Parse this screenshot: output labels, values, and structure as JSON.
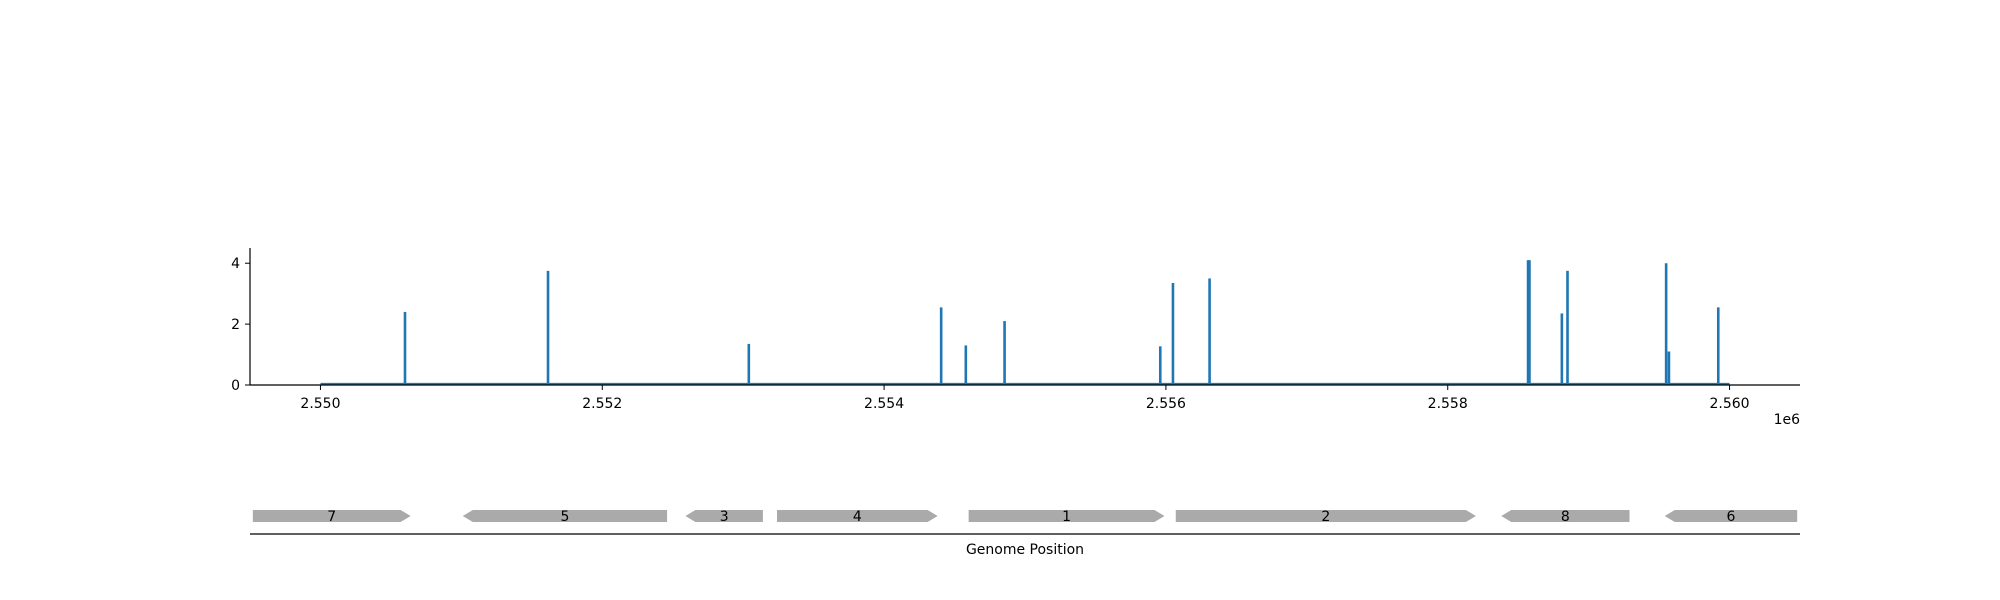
{
  "chart_data": [
    {
      "type": "bar",
      "title": "",
      "xlabel": "",
      "ylabel": "",
      "x_offset_label": "1e6",
      "xlim": [
        2549500,
        2560500
      ],
      "ylim": [
        0,
        4.5
      ],
      "grid": false,
      "x_ticks": [
        2550000,
        2552000,
        2554000,
        2556000,
        2558000,
        2560000
      ],
      "x_tick_labels": [
        "2.550",
        "2.552",
        "2.554",
        "2.556",
        "2.558",
        "2.560"
      ],
      "y_ticks": [
        0,
        2,
        4
      ],
      "y_tick_labels": [
        "0",
        "2",
        "4"
      ],
      "baseline": {
        "x_start": 2550000,
        "x_end": 2560000,
        "value": 0
      },
      "color": "#1f77b4",
      "x": [
        2550600,
        2551615,
        2553040,
        2554405,
        2554580,
        2554855,
        2555960,
        2556050,
        2556310,
        2558570,
        2558580,
        2558810,
        2558850,
        2559550,
        2559570,
        2559920
      ],
      "values": [
        2.4,
        3.75,
        1.35,
        2.55,
        1.3,
        2.1,
        1.27,
        3.35,
        3.5,
        4.1,
        4.1,
        2.35,
        3.75,
        4.0,
        1.1,
        2.55
      ]
    },
    {
      "type": "gene-map",
      "xlabel": "Genome Position",
      "color": "#aaaaaa",
      "genes": [
        {
          "label": "7",
          "start": 2549520,
          "end": 2550640,
          "strand": "+"
        },
        {
          "label": "5",
          "start": 2551010,
          "end": 2552460,
          "strand": "-"
        },
        {
          "label": "3",
          "start": 2552590,
          "end": 2553140,
          "strand": "-"
        },
        {
          "label": "4",
          "start": 2553240,
          "end": 2554380,
          "strand": "+"
        },
        {
          "label": "1",
          "start": 2554600,
          "end": 2555990,
          "strand": "+"
        },
        {
          "label": "2",
          "start": 2556070,
          "end": 2558200,
          "strand": "+"
        },
        {
          "label": "8",
          "start": 2558380,
          "end": 2559290,
          "strand": "-"
        },
        {
          "label": "6",
          "start": 2559540,
          "end": 2560480,
          "strand": "-"
        }
      ]
    }
  ]
}
